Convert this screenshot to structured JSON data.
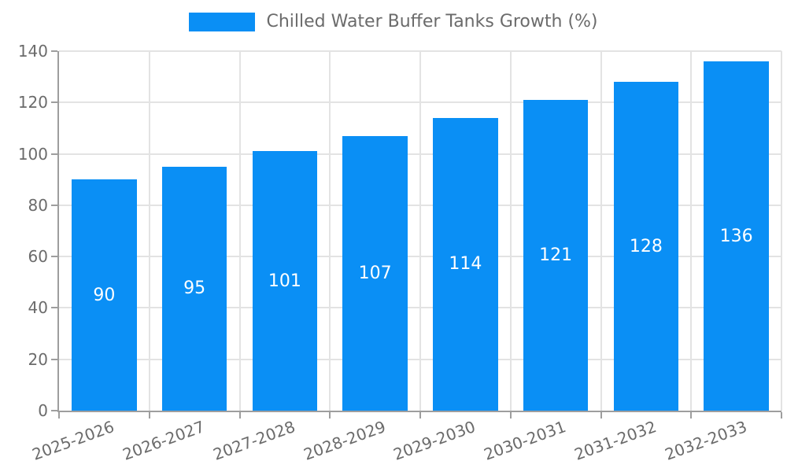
{
  "chart_data": {
    "type": "bar",
    "title": "Chilled Water Buffer Tanks Growth (%)",
    "legend": [
      "Chilled Water Buffer Tanks Growth (%)"
    ],
    "legend_position": "top",
    "categories": [
      "2025-2026",
      "2026-2027",
      "2027-2028",
      "2028-2029",
      "2029-2030",
      "2030-2031",
      "2031-2032",
      "2032-2033"
    ],
    "values": [
      90,
      95,
      101,
      107,
      114,
      121,
      128,
      136
    ],
    "value_labels": [
      "90",
      "95",
      "101",
      "107",
      "114",
      "121",
      "128",
      "136"
    ],
    "xlabel": "",
    "ylabel": "",
    "ylim": [
      0,
      140
    ],
    "ytick_step": 20,
    "yticks": [
      0,
      20,
      40,
      60,
      80,
      100,
      120,
      140
    ],
    "grid": true,
    "bar_width_frac": 0.72,
    "x_label_rotation_deg": -20,
    "colors": {
      "bar": "#0a8ff5",
      "grid": "#e3e3e3",
      "axis": "#9e9e9e",
      "text": "#6b6b6b",
      "valtext": "#ffffff",
      "bg": "#ffffff"
    }
  }
}
